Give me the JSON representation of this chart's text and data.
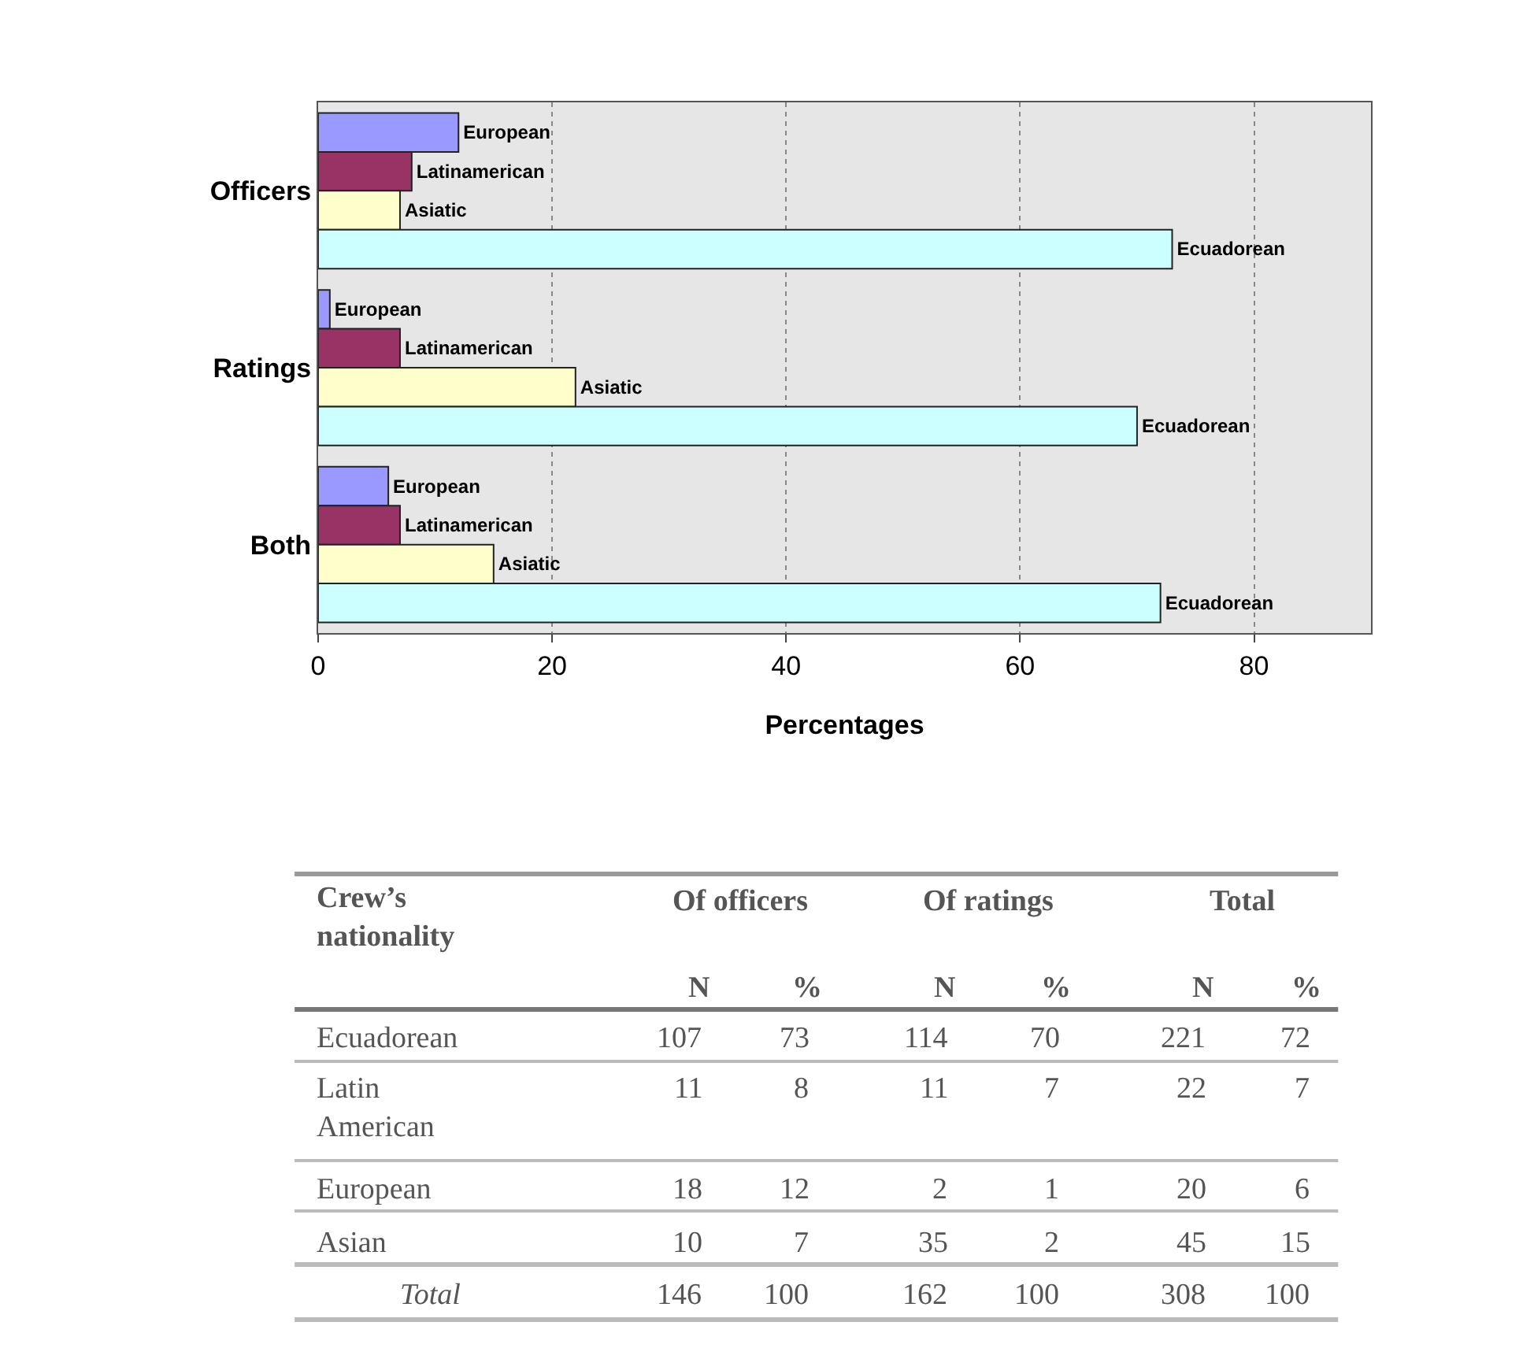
{
  "chart_data": [
    {
      "type": "bar",
      "orientation": "horizontal",
      "categories": [
        "Officers",
        "Ratings",
        "Both"
      ],
      "xlabel": "Percentages",
      "xlim": [
        0,
        90
      ],
      "xticks": [
        0,
        20,
        40,
        60,
        80
      ],
      "grid": "x",
      "legend": false,
      "series": [
        {
          "name": "European",
          "color": "#9999ff",
          "values": [
            12,
            1,
            6
          ]
        },
        {
          "name": "Latinamerican",
          "color": "#993366",
          "values": [
            8,
            7,
            7
          ]
        },
        {
          "name": "Asiatic",
          "color": "#ffffcc",
          "values": [
            7,
            22,
            15
          ]
        },
        {
          "name": "Ecuadorean",
          "color": "#ccffff",
          "values": [
            73,
            70,
            72
          ]
        }
      ]
    },
    {
      "type": "other",
      "title": "Crew’s nationality",
      "annotations": [
        "Of officers",
        "Of ratings",
        "Total"
      ],
      "categories": [
        "Ecuadorean",
        "Latin American",
        "European",
        "Asian",
        "Total"
      ],
      "data_labels": true,
      "series": [
        {
          "name": "N",
          "values": [
            107,
            11,
            18,
            10,
            146
          ]
        },
        {
          "name": "%",
          "values": [
            73,
            8,
            12,
            7,
            100
          ]
        },
        {
          "name": "N",
          "values": [
            114,
            11,
            2,
            35,
            162
          ]
        },
        {
          "name": "%",
          "values": [
            70,
            7,
            1,
            2,
            100
          ]
        },
        {
          "name": "N",
          "values": [
            221,
            22,
            20,
            45,
            308
          ]
        },
        {
          "name": "%",
          "values": [
            72,
            7,
            6,
            15,
            100
          ]
        }
      ]
    }
  ]
}
